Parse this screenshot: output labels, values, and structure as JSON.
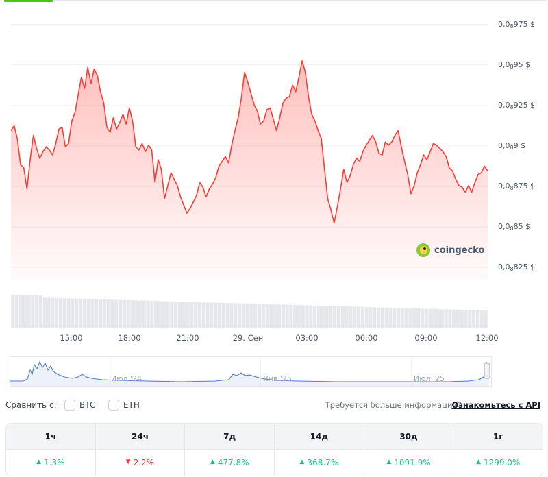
{
  "chart_data": {
    "type": "area",
    "currency": "$",
    "y_ticks": [
      {
        "value": 8.975e-09,
        "label_prefix": "0,0",
        "label_sub": "8",
        "label_suffix": "975 $"
      },
      {
        "value": 8.95e-09,
        "label_prefix": "0,0",
        "label_sub": "8",
        "label_suffix": "95 $"
      },
      {
        "value": 8.925e-09,
        "label_prefix": "0,0",
        "label_sub": "8",
        "label_suffix": "925 $"
      },
      {
        "value": 8.9e-09,
        "label_prefix": "0,0",
        "label_sub": "8",
        "label_suffix": "9 $"
      },
      {
        "value": 8.875e-09,
        "label_prefix": "0,0",
        "label_sub": "8",
        "label_suffix": "875 $"
      },
      {
        "value": 8.85e-09,
        "label_prefix": "0,0",
        "label_sub": "8",
        "label_suffix": "85 $"
      },
      {
        "value": 8.825e-09,
        "label_prefix": "0,0",
        "label_sub": "8",
        "label_suffix": "825 $"
      }
    ],
    "x_ticks": [
      "15:00",
      "18:00",
      "21:00",
      "29. Сен",
      "03:00",
      "06:00",
      "09:00",
      "12:00"
    ],
    "series": [
      {
        "color": "#ff3a33",
        "values_e12": [
          8.912,
          8.915,
          8.907,
          8.891,
          8.889,
          8.876,
          8.894,
          8.909,
          8.901,
          8.895,
          8.899,
          8.902,
          8.9,
          8.897,
          8.904,
          8.913,
          8.914,
          8.902,
          8.904,
          8.918,
          8.923,
          8.934,
          8.945,
          8.938,
          8.951,
          8.941,
          8.95,
          8.946,
          8.936,
          8.929,
          8.914,
          8.911,
          8.92,
          8.913,
          8.917,
          8.922,
          8.916,
          8.926,
          8.918,
          8.902,
          8.9,
          8.904,
          8.899,
          8.903,
          8.9,
          8.88,
          8.894,
          8.888,
          8.87,
          8.878,
          8.886,
          8.882,
          8.878,
          8.871,
          8.866,
          8.861,
          8.864,
          8.868,
          8.872,
          8.88,
          8.877,
          8.871,
          8.876,
          8.879,
          8.883,
          8.89,
          8.893,
          8.896,
          8.892,
          8.903,
          8.912,
          8.92,
          8.932,
          8.948,
          8.942,
          8.935,
          8.928,
          8.924,
          8.916,
          8.918,
          8.925,
          8.926,
          8.919,
          8.912,
          8.92,
          8.929,
          8.932,
          8.933,
          8.94,
          8.936,
          8.945,
          8.955,
          8.948,
          8.933,
          8.922,
          8.918,
          8.912,
          8.907,
          8.888,
          8.87,
          8.863,
          8.855,
          8.865,
          8.876,
          8.888,
          8.88,
          8.884,
          8.891,
          8.895,
          8.893,
          8.899,
          8.903,
          8.906,
          8.909,
          8.905,
          8.898,
          8.897,
          8.905,
          8.903,
          8.905,
          8.909,
          8.912,
          8.902,
          8.893,
          8.885,
          8.873,
          8.878,
          8.886,
          8.891,
          8.897,
          8.894,
          8.899,
          8.904,
          8.903,
          8.901,
          8.899,
          8.896,
          8.889,
          8.887,
          8.882,
          8.878,
          8.877,
          8.874,
          8.878,
          8.874,
          8.88,
          8.885,
          8.886,
          8.89,
          8.887
        ],
        "note": "values_e12 = price × 1e12 (price values in $)"
      }
    ],
    "ylim_e12": [
      8.82,
      8.985
    ],
    "volume_bars": "decreasing gray bars"
  },
  "watermark": {
    "brand": "coingecko",
    "icon": "coingecko-logo-icon"
  },
  "navigator": {
    "labels": [
      "Июл '24",
      "Янв '25",
      "Июл '25"
    ]
  },
  "compare": {
    "label": "Сравнить с:",
    "options": [
      "BTC",
      "ETH"
    ],
    "api_question": "Требуется больше информации?",
    "api_link": "Ознакомьтесь с API"
  },
  "performance": {
    "columns": [
      "1ч",
      "24ч",
      "7д",
      "14д",
      "30д",
      "1г"
    ],
    "values": [
      {
        "text": "1.3%",
        "direction": "up"
      },
      {
        "text": "2.2%",
        "direction": "down"
      },
      {
        "text": "477.8%",
        "direction": "up"
      },
      {
        "text": "368.7%",
        "direction": "up"
      },
      {
        "text": "1091.9%",
        "direction": "up"
      },
      {
        "text": "1299.0%",
        "direction": "up"
      }
    ]
  },
  "colors": {
    "up": "#16c784",
    "down": "#ea3943",
    "price_line": "#ff3a33",
    "navigator_line": "#4a7bd0",
    "tab_accent": "#4bcc00"
  }
}
